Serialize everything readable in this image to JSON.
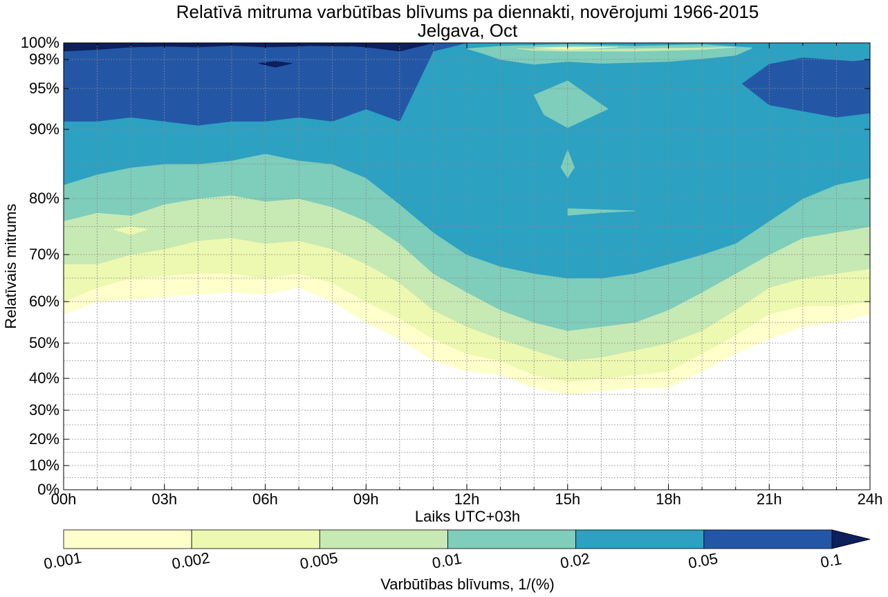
{
  "chart_data": {
    "type": "contourf",
    "title": "Relatīvā mitruma varbūtības blīvums pa diennakti, novērojumi 1966-2015",
    "subtitle": "Jelgava, Oct",
    "xlabel": "Laiks UTC+03h",
    "ylabel": "Relatīvais mitrums",
    "x_ticks": [
      "00h",
      "03h",
      "06h",
      "09h",
      "12h",
      "15h",
      "18h",
      "21h",
      "24h"
    ],
    "x_range": [
      0,
      24
    ],
    "y_ticks": [
      {
        "v": 0,
        "label": "0%"
      },
      {
        "v": 10,
        "label": "10%"
      },
      {
        "v": 20,
        "label": "20%"
      },
      {
        "v": 30,
        "label": "30%"
      },
      {
        "v": 40,
        "label": "40%"
      },
      {
        "v": 50,
        "label": "50%"
      },
      {
        "v": 60,
        "label": "60%"
      },
      {
        "v": 70,
        "label": "70%"
      },
      {
        "v": 80,
        "label": "80%"
      },
      {
        "v": 90,
        "label": "90%"
      },
      {
        "v": 95,
        "label": "95%"
      },
      {
        "v": 98,
        "label": "98%"
      },
      {
        "v": 100,
        "label": "100%"
      }
    ],
    "y_range": [
      0,
      100
    ],
    "y_scale": "nonlinear (stretched toward 100%)",
    "grid": true,
    "colorbar": {
      "label": "Varbūtības blīvums, 1/(%)",
      "ticks": [
        "0.001",
        "0.002",
        "0.005",
        "0.01",
        "0.02",
        "0.05",
        "0.1"
      ],
      "colors": [
        "#ffffcc",
        "#edf8b1",
        "#c7e9b4",
        "#7fcdbb",
        "#2ca1c2",
        "#2357a6",
        "#0d1f5c"
      ],
      "extend": "max"
    },
    "contour_boundaries": [
      {
        "level": "0.001",
        "color": "#ffffcc",
        "lower": [
          [
            0,
            57
          ],
          [
            1,
            60
          ],
          [
            2,
            60.5
          ],
          [
            3,
            61
          ],
          [
            4,
            61.5
          ],
          [
            5,
            62
          ],
          [
            6,
            61.5
          ],
          [
            7,
            63
          ],
          [
            8,
            60
          ],
          [
            9,
            55
          ],
          [
            10,
            51
          ],
          [
            11,
            45
          ],
          [
            12,
            42
          ],
          [
            13,
            41
          ],
          [
            14,
            37
          ],
          [
            15,
            35
          ],
          [
            16,
            36
          ],
          [
            17,
            37
          ],
          [
            18,
            37
          ],
          [
            19,
            42
          ],
          [
            20,
            47
          ],
          [
            21,
            51
          ],
          [
            22,
            54
          ],
          [
            23,
            55
          ],
          [
            24,
            57
          ]
        ],
        "upper": [
          [
            0,
            60
          ],
          [
            1,
            63
          ],
          [
            2,
            65
          ],
          [
            3,
            65.5
          ],
          [
            4,
            66
          ],
          [
            5,
            66
          ],
          [
            6,
            65
          ],
          [
            7,
            66
          ],
          [
            8,
            64
          ],
          [
            9,
            60
          ],
          [
            10,
            56
          ],
          [
            11,
            51
          ],
          [
            12,
            47
          ],
          [
            13,
            45
          ],
          [
            14,
            41
          ],
          [
            15,
            39
          ],
          [
            16,
            40
          ],
          [
            17,
            41
          ],
          [
            18,
            42
          ],
          [
            19,
            47
          ],
          [
            20,
            52
          ],
          [
            21,
            57
          ],
          [
            22,
            59
          ],
          [
            23,
            59
          ],
          [
            24,
            60
          ]
        ]
      },
      {
        "level": "0.002",
        "color": "#edf8b1",
        "upper": [
          [
            0,
            68
          ],
          [
            1,
            68
          ],
          [
            2,
            70
          ],
          [
            3,
            71
          ],
          [
            4,
            72.5
          ],
          [
            5,
            73
          ],
          [
            6,
            72
          ],
          [
            7,
            72.5
          ],
          [
            8,
            71
          ],
          [
            9,
            68
          ],
          [
            10,
            64
          ],
          [
            11,
            58
          ],
          [
            12,
            54
          ],
          [
            13,
            51
          ],
          [
            14,
            48
          ],
          [
            15,
            45
          ],
          [
            16,
            46
          ],
          [
            17,
            48
          ],
          [
            18,
            50
          ],
          [
            19,
            53
          ],
          [
            20,
            58
          ],
          [
            21,
            63
          ],
          [
            22,
            65
          ],
          [
            23,
            66
          ],
          [
            24,
            67
          ]
        ]
      },
      {
        "level": "0.005",
        "color": "#c7e9b4",
        "upper": [
          [
            0,
            76
          ],
          [
            1,
            77.5
          ],
          [
            2,
            77
          ],
          [
            3,
            79
          ],
          [
            4,
            80
          ],
          [
            5,
            80.5
          ],
          [
            6,
            79.5
          ],
          [
            7,
            80
          ],
          [
            8,
            78.5
          ],
          [
            9,
            76
          ],
          [
            10,
            72
          ],
          [
            11,
            66
          ],
          [
            12,
            62
          ],
          [
            13,
            58
          ],
          [
            14,
            55
          ],
          [
            15,
            53
          ],
          [
            16,
            54
          ],
          [
            17,
            55
          ],
          [
            18,
            58
          ],
          [
            19,
            62
          ],
          [
            20,
            66
          ],
          [
            21,
            70
          ],
          [
            22,
            73
          ],
          [
            23,
            74
          ],
          [
            24,
            75
          ]
        ]
      },
      {
        "level": "0.01",
        "color": "#7fcdbb",
        "upper": [
          [
            0,
            82
          ],
          [
            1,
            83.5
          ],
          [
            2,
            84.5
          ],
          [
            3,
            85
          ],
          [
            4,
            85
          ],
          [
            5,
            85.5
          ],
          [
            6,
            86.5
          ],
          [
            7,
            85.5
          ],
          [
            8,
            85
          ],
          [
            9,
            83
          ],
          [
            10,
            79
          ],
          [
            11,
            74
          ],
          [
            12,
            70
          ],
          [
            13,
            67.5
          ],
          [
            14,
            66
          ],
          [
            15,
            65
          ],
          [
            16,
            65
          ],
          [
            17,
            66
          ],
          [
            18,
            68
          ],
          [
            19,
            70
          ],
          [
            20,
            72
          ],
          [
            21,
            76
          ],
          [
            22,
            80
          ],
          [
            23,
            82
          ],
          [
            24,
            83
          ]
        ]
      },
      {
        "level": "0.02",
        "color": "#2ca1c2",
        "upper": [
          [
            0,
            91
          ],
          [
            1,
            91
          ],
          [
            2,
            91.5
          ],
          [
            3,
            91
          ],
          [
            4,
            90.5
          ],
          [
            5,
            91
          ],
          [
            6,
            91
          ],
          [
            7,
            91.5
          ],
          [
            8,
            91
          ],
          [
            9,
            92.5
          ],
          [
            10,
            91
          ],
          [
            11,
            99
          ],
          [
            12,
            100
          ],
          [
            24,
            100
          ]
        ]
      },
      {
        "level": "0.05",
        "color": "#2357a6",
        "upper": [
          [
            0,
            99
          ],
          [
            1,
            99.2
          ],
          [
            2,
            99.5
          ],
          [
            3,
            99.6
          ],
          [
            4,
            99.5
          ],
          [
            5,
            99.7
          ],
          [
            6,
            99.5
          ],
          [
            7,
            99.6
          ],
          [
            8,
            99.8
          ],
          [
            9,
            99.5
          ],
          [
            10,
            99
          ],
          [
            11,
            100
          ],
          [
            24,
            100
          ]
        ]
      }
    ],
    "islands": [
      {
        "level": "0.05",
        "color": "#2357a6",
        "points": [
          [
            23.5,
            97.8
          ],
          [
            24,
            98
          ],
          [
            24,
            92
          ],
          [
            23,
            91.5
          ],
          [
            21,
            93
          ],
          [
            20.2,
            95.5
          ],
          [
            21,
            97.5
          ],
          [
            22,
            98.2
          ]
        ]
      },
      {
        "level": "0.1",
        "color": "#0d1f5c",
        "points": [
          [
            5.8,
            97.6
          ],
          [
            6.3,
            97.8
          ],
          [
            6.8,
            97.6
          ],
          [
            6.3,
            97.2
          ]
        ]
      },
      {
        "level": "0.1",
        "color": "#0d1f5c",
        "points": [
          [
            2.5,
            100
          ],
          [
            9,
            100
          ],
          [
            8.5,
            99.6
          ],
          [
            5,
            99.8
          ],
          [
            3,
            99.6
          ]
        ]
      },
      {
        "level": "0.01",
        "color": "#7fcdbb",
        "points": [
          [
            12,
            99.3
          ],
          [
            13,
            99.6
          ],
          [
            15,
            99.8
          ],
          [
            17,
            99.6
          ],
          [
            19,
            99.8
          ],
          [
            20.5,
            99.4
          ],
          [
            20,
            98.5
          ],
          [
            19,
            98.1
          ],
          [
            18,
            97.8
          ],
          [
            17,
            97.7
          ],
          [
            16,
            97.6
          ],
          [
            15,
            97.8
          ],
          [
            14,
            97.5
          ],
          [
            13,
            98
          ],
          [
            12.5,
            98.7
          ]
        ]
      },
      {
        "level": "0.005",
        "color": "#c7e9b4",
        "points": [
          [
            13.5,
            99.3
          ],
          [
            15,
            99.2
          ],
          [
            17,
            99.3
          ],
          [
            19,
            99.4
          ],
          [
            20,
            99.5
          ],
          [
            19,
            99.2
          ],
          [
            17,
            99
          ],
          [
            15,
            99
          ],
          [
            14,
            99.1
          ]
        ]
      },
      {
        "level": "0.002",
        "color": "#edf8b1",
        "points": [
          [
            14,
            99.4
          ],
          [
            15,
            99.2
          ],
          [
            16,
            99.4
          ],
          [
            16.5,
            99.5
          ],
          [
            15,
            99.5
          ]
        ]
      },
      {
        "level": "0.01",
        "color": "#7fcdbb",
        "points": [
          [
            14,
            94.2
          ],
          [
            15,
            95.8
          ],
          [
            16.2,
            92.5
          ],
          [
            15,
            90.2
          ],
          [
            14.3,
            91.8
          ]
        ]
      },
      {
        "level": "0.01",
        "color": "#7fcdbb",
        "points": [
          [
            15,
            87
          ],
          [
            15.2,
            84.5
          ],
          [
            15,
            83
          ],
          [
            14.8,
            84.5
          ]
        ]
      },
      {
        "level": "0.01",
        "color": "#7fcdbb",
        "points": [
          [
            15,
            78.2
          ],
          [
            16,
            78
          ],
          [
            17,
            77.8
          ],
          [
            16,
            77.5
          ],
          [
            15,
            77
          ]
        ]
      },
      {
        "level": "0.002",
        "color": "#edf8b1",
        "points": [
          [
            1.5,
            74.5
          ],
          [
            2,
            75
          ],
          [
            2.5,
            74.5
          ],
          [
            2,
            73.5
          ]
        ]
      }
    ]
  }
}
